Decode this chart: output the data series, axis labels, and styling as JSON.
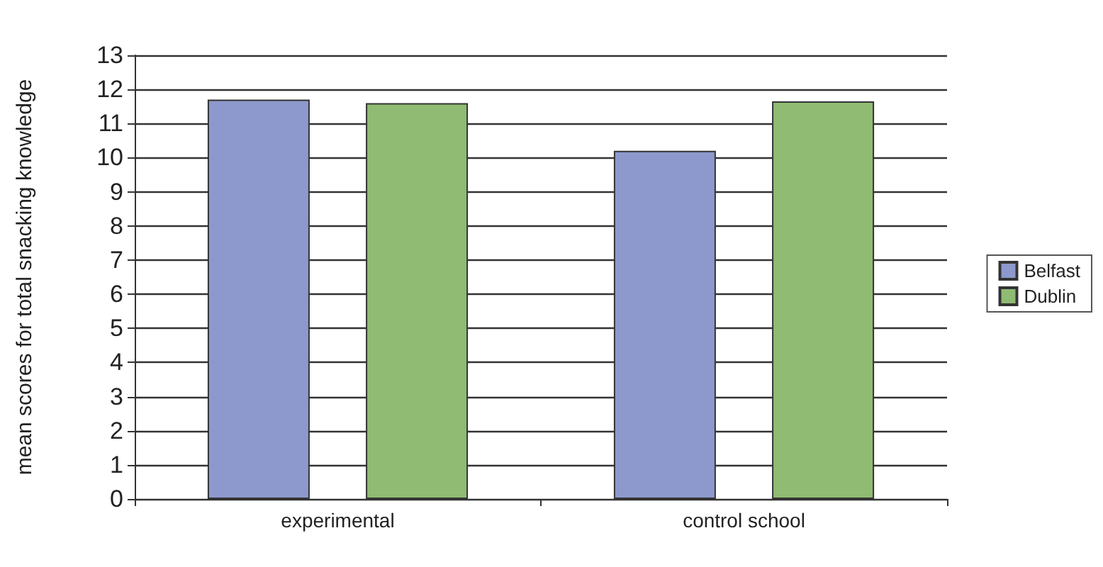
{
  "chart_data": {
    "type": "bar",
    "ylabel": "mean scores for total snacking knowledge",
    "categories": [
      "experimental",
      "control school"
    ],
    "series": [
      {
        "name": "Belfast",
        "color": "#8d99cc",
        "values": [
          11.7,
          10.2
        ]
      },
      {
        "name": "Dublin",
        "color": "#8fbb72",
        "values": [
          11.6,
          11.65
        ]
      }
    ],
    "ylim": [
      0,
      13
    ],
    "yticks": [
      0,
      1,
      2,
      3,
      4,
      5,
      6,
      7,
      8,
      9,
      10,
      11,
      12,
      13
    ],
    "grid": "y",
    "legend": "right"
  }
}
